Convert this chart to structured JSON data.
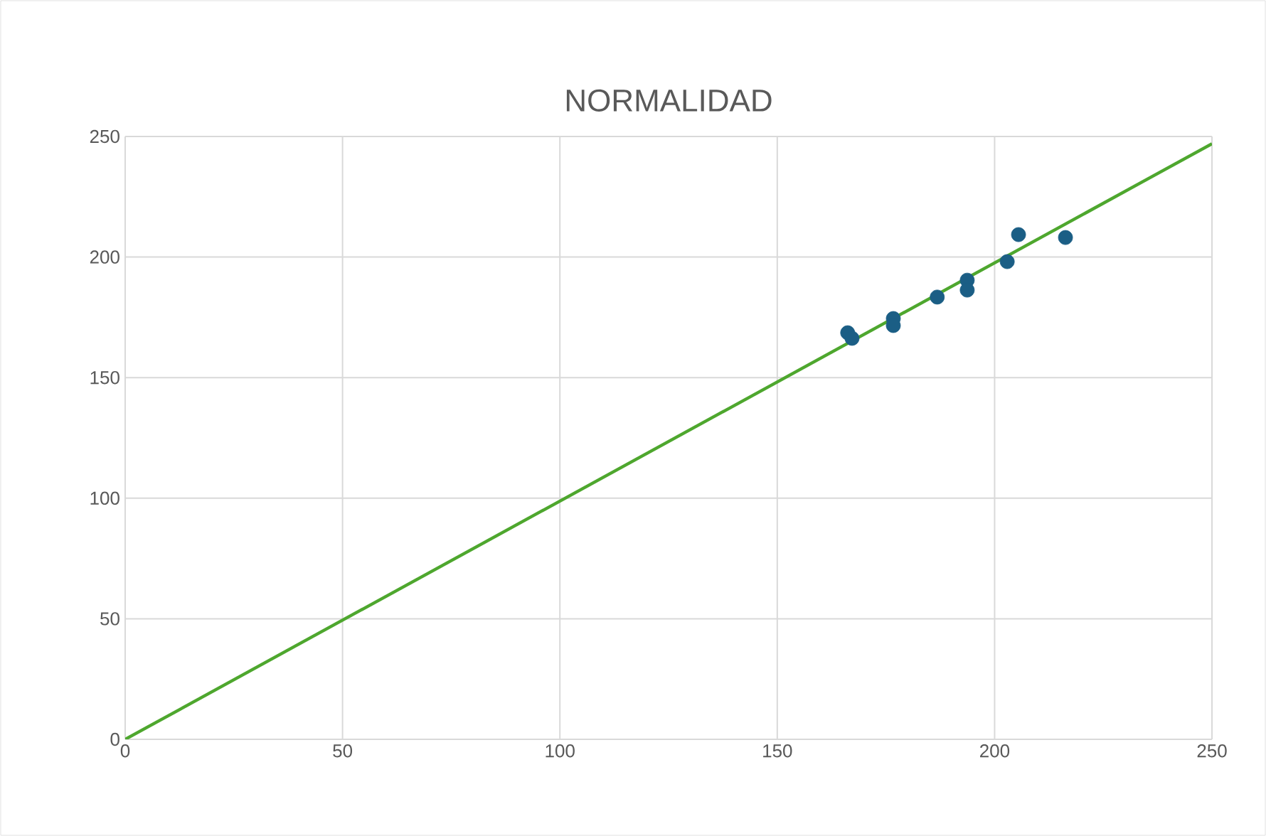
{
  "chart_data": {
    "type": "scatter",
    "title": "NORMALIDAD",
    "series": [
      {
        "type": "scatter",
        "color": "#1b5e85",
        "marker": "circle",
        "x": [
          166.2,
          167.2,
          176.7,
          176.7,
          186.8,
          193.7,
          193.7,
          202.9,
          205.5,
          216.3
        ],
        "values": [
          168.6,
          166.3,
          174.5,
          171.6,
          183.4,
          190.4,
          186.3,
          198.1,
          209.3,
          208.1
        ]
      },
      {
        "type": "line",
        "color": "#4ea72e",
        "x": [
          0,
          250
        ],
        "values": [
          0,
          247
        ]
      }
    ],
    "xlim": [
      0,
      250
    ],
    "ylim": [
      0,
      250
    ],
    "xticks": [
      0,
      50,
      100,
      150,
      200,
      250
    ],
    "yticks": [
      0,
      50,
      100,
      150,
      200,
      250
    ],
    "grid": true
  }
}
